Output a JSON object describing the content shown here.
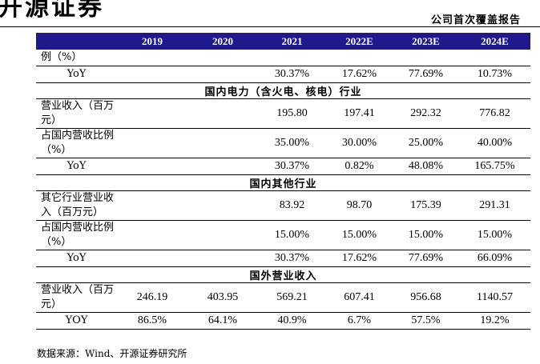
{
  "page": {
    "brand_text": "开源证券",
    "report_type": "公司首次覆盖报告",
    "source_note": "数据来源：Wind、开源证券研究所"
  },
  "table": {
    "columns": [
      "",
      "2019",
      "2020",
      "2021",
      "2022E",
      "2023E",
      "2024E"
    ],
    "rows": [
      {
        "type": "data",
        "label": "例（%）",
        "values": [
          "",
          "",
          "",
          "",
          "",
          ""
        ]
      },
      {
        "type": "data",
        "label": "YoY",
        "center": true,
        "values": [
          "",
          "",
          "30.37%",
          "17.62%",
          "77.69%",
          "10.73%"
        ]
      },
      {
        "type": "section",
        "label": "国内电力（含火电、核电）行业"
      },
      {
        "type": "data",
        "label": "营业收入（百万元）",
        "values": [
          "",
          "",
          "195.80",
          "197.41",
          "292.32",
          "776.82"
        ]
      },
      {
        "type": "data",
        "label": "占国内营收比例（%）",
        "values": [
          "",
          "",
          "35.00%",
          "30.00%",
          "25.00%",
          "40.00%"
        ]
      },
      {
        "type": "data",
        "label": "YoY",
        "center": true,
        "values": [
          "",
          "",
          "30.37%",
          "0.82%",
          "48.08%",
          "165.75%"
        ]
      },
      {
        "type": "section",
        "label": "国内其他行业"
      },
      {
        "type": "data",
        "label": "其它行业营业收入（百万元）",
        "values": [
          "",
          "",
          "83.92",
          "98.70",
          "175.39",
          "291.31"
        ]
      },
      {
        "type": "data",
        "label": "占国内营收比例（%）",
        "values": [
          "",
          "",
          "15.00%",
          "15.00%",
          "15.00%",
          "15.00%"
        ]
      },
      {
        "type": "data",
        "label": "YoY",
        "center": true,
        "values": [
          "",
          "",
          "30.37%",
          "17.62%",
          "77.69%",
          "66.09%"
        ]
      },
      {
        "type": "section",
        "label": "国外营业收入"
      },
      {
        "type": "data",
        "label": "营业收入（百万元）",
        "values": [
          "246.19",
          "403.95",
          "569.21",
          "607.41",
          "956.68",
          "1140.57"
        ]
      },
      {
        "type": "data",
        "label": "YOY",
        "center": true,
        "values": [
          "86.5%",
          "64.1%",
          "40.9%",
          "6.7%",
          "57.5%",
          "19.2%"
        ]
      }
    ]
  }
}
